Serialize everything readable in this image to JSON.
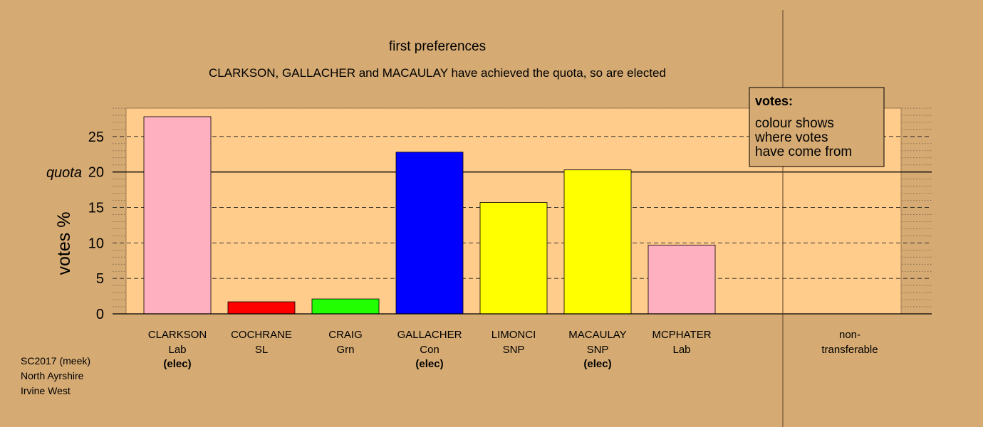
{
  "chart_data": {
    "type": "bar",
    "title": "first preferences",
    "subtitle": "CLARKSON, GALLACHER and MACAULAY have achieved the quota, so are elected",
    "ylabel": "votes %",
    "quota_label": "quota",
    "quota_value": 20,
    "ylim": [
      0,
      29
    ],
    "yticks": [
      0,
      5,
      10,
      15,
      20,
      25
    ],
    "grid": true,
    "legend": {
      "title": "votes:",
      "lines": [
        "colour shows",
        "where votes",
        "have come from"
      ],
      "placement": "top-right"
    },
    "candidates": [
      {
        "name": "CLARKSON",
        "party": "Lab",
        "status": "(elec)",
        "value": 27.8,
        "color": "#FFB0C0"
      },
      {
        "name": "COCHRANE",
        "party": "SL",
        "status": "",
        "value": 1.7,
        "color": "#FF0000"
      },
      {
        "name": "CRAIG",
        "party": "Grn",
        "status": "",
        "value": 2.1,
        "color": "#22FF00"
      },
      {
        "name": "GALLACHER",
        "party": "Con",
        "status": "(elec)",
        "value": 22.8,
        "color": "#0000FF"
      },
      {
        "name": "LIMONCI",
        "party": "SNP",
        "status": "",
        "value": 15.7,
        "color": "#FFFF00"
      },
      {
        "name": "MACAULAY",
        "party": "SNP",
        "status": "(elec)",
        "value": 20.3,
        "color": "#FFFF00"
      },
      {
        "name": "MCPHATER",
        "party": "Lab",
        "status": "",
        "value": 9.7,
        "color": "#FFB0C0"
      }
    ],
    "non_transferable": {
      "label_line1": "non-",
      "label_line2": "transferable",
      "value": 0
    }
  },
  "colors": {
    "background": "#D5AA73",
    "plot_background": "#FFCC8C"
  },
  "footer": {
    "line1": "SC2017 (meek)",
    "line2": "North Ayrshire",
    "line3": "Irvine West"
  }
}
